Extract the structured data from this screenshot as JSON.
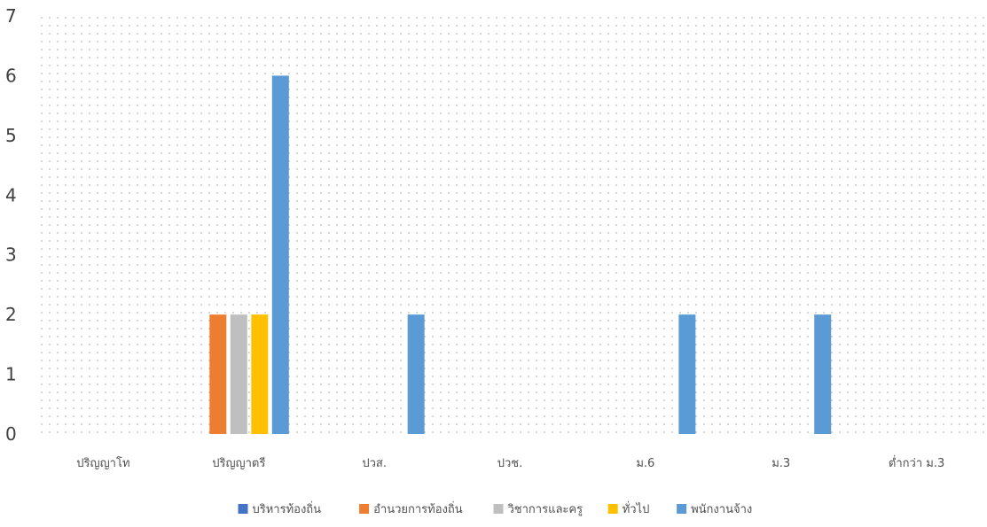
{
  "chart_data": {
    "type": "bar",
    "categories": [
      "ปริญญาโท",
      "ปริญญาตรี",
      "ปวส.",
      "ปวช.",
      "ม.6",
      "ม.3",
      "ต่ำกว่า ม.3"
    ],
    "series": [
      {
        "name": "บริหารท้องถิ่น",
        "color": "#4472c4",
        "values": [
          0,
          0,
          0,
          0,
          0,
          0,
          0
        ]
      },
      {
        "name": "อำนวยการท้องถิ่น",
        "color": "#ed7d31",
        "values": [
          0,
          2,
          0,
          0,
          0,
          0,
          0
        ]
      },
      {
        "name": "วิชาการและครู",
        "color": "#bfbfbf",
        "values": [
          0,
          2,
          0,
          0,
          0,
          0,
          0
        ]
      },
      {
        "name": "ทั่วไป",
        "color": "#ffc000",
        "values": [
          0,
          2,
          0,
          0,
          0,
          0,
          0
        ]
      },
      {
        "name": "พนักงานจ้าง",
        "color": "#5b9bd5",
        "values": [
          0,
          6,
          2,
          0,
          2,
          2,
          0
        ]
      }
    ],
    "yticks": [
      "0",
      "1",
      "2",
      "3",
      "4",
      "5",
      "6",
      "7"
    ],
    "ylim": [
      0,
      7
    ],
    "grid": false,
    "plot_background": "dotted",
    "legend_position": "bottom"
  }
}
